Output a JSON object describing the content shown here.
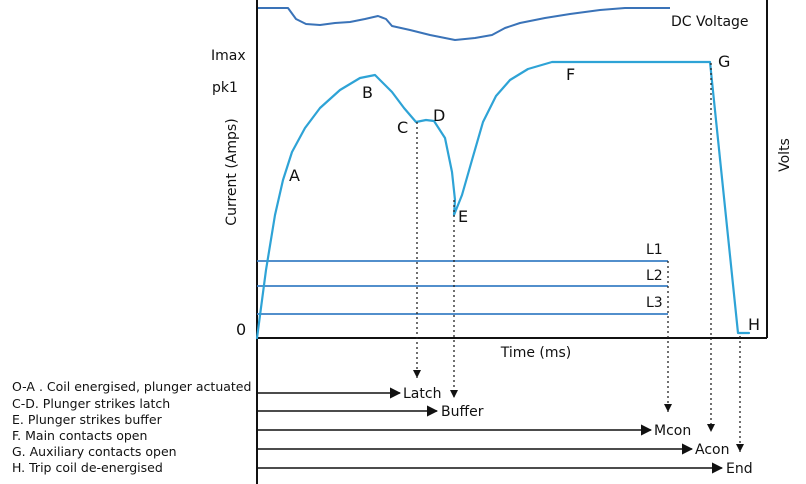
{
  "diagram": {
    "dc_voltage_label": "DC Voltage",
    "imax_label": "Imax",
    "pk1_label": "pk1",
    "zero_label": "0",
    "y_axis_label": "Current (Amps)",
    "right_axis_label": "Volts",
    "x_axis_label": "Time (ms)",
    "points": {
      "A": "A",
      "B": "B",
      "C": "C",
      "D": "D",
      "E": "E",
      "F": "F",
      "G": "G",
      "H": "H"
    },
    "levels": [
      "L1",
      "L2",
      "L3"
    ],
    "events": {
      "latch": "Latch",
      "buffer": "Buffer",
      "mcon": "Mcon",
      "acon": "Acon",
      "end": "End"
    },
    "legend": [
      "O-A . Coil energised, plunger actuated",
      "C-D. Plunger strikes latch",
      "E. Plunger strikes buffer",
      "F. Main contacts open",
      "G. Auxiliary contacts open",
      "H. Trip coil de-energised"
    ],
    "colors": {
      "current_trace": "#2ea3d6",
      "voltage_trace": "#3a73b8",
      "level_lines": "#3a7fc4"
    }
  }
}
